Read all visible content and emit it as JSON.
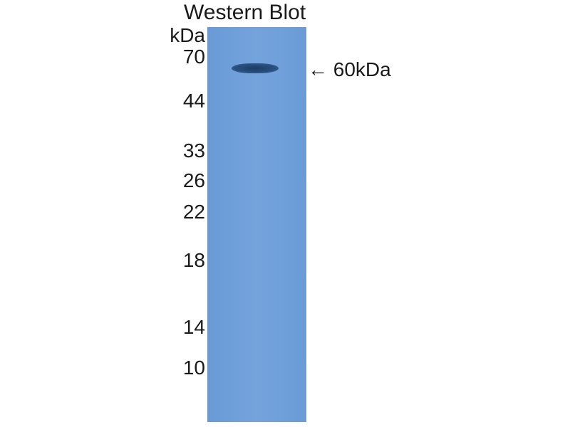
{
  "title": "Western Blot",
  "unit_label": "kDa",
  "markers": [
    "70",
    "44",
    "33",
    "26",
    "22",
    "18",
    "14",
    "10"
  ],
  "band_label": "← 60kDa",
  "colors": {
    "membrane": "#6f9fd8",
    "band": "#234872"
  }
}
